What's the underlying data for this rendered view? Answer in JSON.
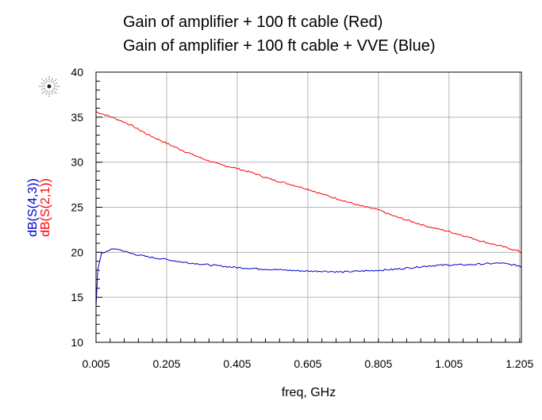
{
  "chart_data": {
    "type": "line",
    "title_lines": [
      "Gain of amplifier + 100 ft cable (Red)",
      "Gain of amplifier + 100 ft cable + VVE (Blue)"
    ],
    "xlabel": "freq, GHz",
    "ylabels": [
      {
        "text": "dB(S(4,3))",
        "color": "#0000cc"
      },
      {
        "text": "dB(S(2,1))",
        "color": "#ff0000"
      }
    ],
    "xlim": [
      0.005,
      1.21
    ],
    "ylim": [
      10,
      40
    ],
    "x_ticks": [
      "0.005",
      "0.205",
      "0.405",
      "0.605",
      "0.805",
      "1.005",
      "1.205"
    ],
    "x_tick_values": [
      0.005,
      0.205,
      0.405,
      0.605,
      0.805,
      1.005,
      1.205
    ],
    "y_ticks": [
      "10",
      "15",
      "20",
      "25",
      "30",
      "35",
      "40"
    ],
    "y_tick_values": [
      10,
      15,
      20,
      25,
      30,
      35,
      40
    ],
    "grid": true,
    "series": [
      {
        "name": "dB(S(2,1))",
        "color": "#ff0000",
        "x": [
          0.005,
          0.05,
          0.1,
          0.15,
          0.205,
          0.25,
          0.3,
          0.35,
          0.405,
          0.45,
          0.5,
          0.55,
          0.605,
          0.65,
          0.7,
          0.75,
          0.805,
          0.85,
          0.9,
          0.95,
          1.005,
          1.05,
          1.1,
          1.15,
          1.205,
          1.21
        ],
        "values": [
          35.6,
          35.0,
          34.2,
          33.1,
          32.1,
          31.3,
          30.5,
          29.8,
          29.3,
          28.8,
          28.1,
          27.6,
          27.0,
          26.4,
          25.8,
          25.2,
          24.7,
          24.0,
          23.4,
          22.8,
          22.3,
          21.8,
          21.2,
          20.7,
          20.1,
          19.9
        ]
      },
      {
        "name": "dB(S(4,3))",
        "color": "#0000cc",
        "x": [
          0.005,
          0.01,
          0.02,
          0.04,
          0.06,
          0.08,
          0.1,
          0.15,
          0.205,
          0.25,
          0.3,
          0.35,
          0.405,
          0.45,
          0.5,
          0.55,
          0.605,
          0.65,
          0.7,
          0.75,
          0.805,
          0.85,
          0.9,
          0.95,
          1.005,
          1.05,
          1.1,
          1.15,
          1.205,
          1.21
        ],
        "values": [
          14.0,
          18.0,
          19.8,
          20.2,
          20.4,
          20.2,
          19.9,
          19.5,
          19.2,
          18.9,
          18.7,
          18.5,
          18.3,
          18.2,
          18.1,
          18.0,
          17.9,
          17.9,
          17.8,
          17.9,
          18.0,
          18.1,
          18.3,
          18.5,
          18.6,
          18.6,
          18.7,
          18.8,
          18.5,
          18.3
        ]
      }
    ]
  }
}
